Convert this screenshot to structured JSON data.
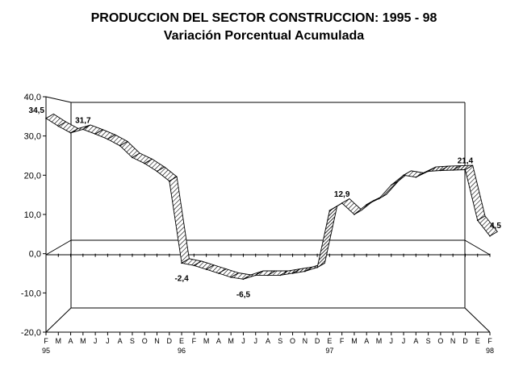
{
  "chart_data": {
    "type": "line",
    "title": "PRODUCCION DEL SECTOR CONSTRUCCION: 1995 - 98",
    "subtitle": "Variación Porcentual Acumulada",
    "xlabel": "",
    "ylabel": "",
    "ylim": [
      -20,
      40
    ],
    "y_ticks": [
      "40,0",
      "30,0",
      "20,0",
      "10,0",
      "0,0",
      "-10,0",
      "-20,0"
    ],
    "x_month_labels": [
      "F",
      "M",
      "A",
      "M",
      "J",
      "J",
      "A",
      "S",
      "O",
      "N",
      "D",
      "E",
      "F",
      "M",
      "A",
      "M",
      "J",
      "J",
      "A",
      "S",
      "O",
      "N",
      "D",
      "E",
      "F",
      "M",
      "A",
      "M",
      "J",
      "J",
      "A",
      "S",
      "O",
      "N",
      "D",
      "E",
      "F"
    ],
    "x_year_labels": [
      {
        "index": 0,
        "text": "95"
      },
      {
        "index": 11,
        "text": "96"
      },
      {
        "index": 23,
        "text": "97"
      },
      {
        "index": 36,
        "text": "98"
      }
    ],
    "series": [
      {
        "values": [
          34.5,
          32.5,
          30.8,
          31.7,
          30.5,
          29.2,
          27.5,
          24.5,
          23,
          21,
          18.5,
          -2.4,
          -3,
          -4,
          -5,
          -6,
          -6.5,
          -5.5,
          -5.5,
          -5.5,
          -5,
          -4.5,
          -3.5,
          11,
          12.9,
          10,
          12.5,
          14,
          17.5,
          20,
          19.5,
          21,
          21.2,
          21.3,
          21.4,
          8.5,
          4.5
        ]
      }
    ],
    "data_labels": [
      {
        "index": 0,
        "text": "34,5"
      },
      {
        "index": 3,
        "text": "31,7"
      },
      {
        "index": 11,
        "text": "-2,4"
      },
      {
        "index": 16,
        "text": "-6,5"
      },
      {
        "index": 24,
        "text": "12,9"
      },
      {
        "index": 34,
        "text": "21,4"
      },
      {
        "index": 36,
        "text": "4,5"
      }
    ],
    "grid": false
  }
}
